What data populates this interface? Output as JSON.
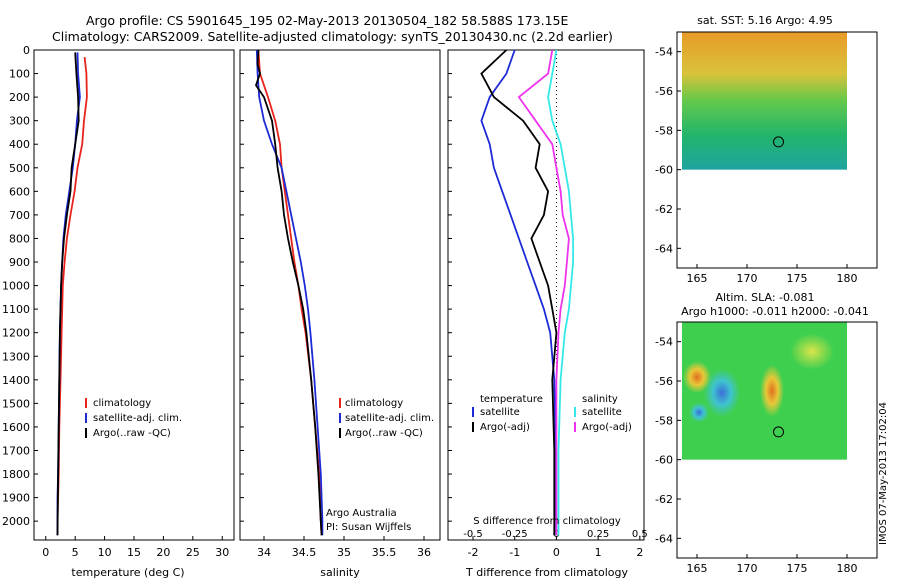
{
  "header": {
    "line1": "Argo profile: CS 5901645_195 02-May-2013 20130504_182 58.588S 173.15E",
    "line2": "Climatology: CARS2009. Satellite-adjusted climatology: synTS_20130430.nc (2.2d earlier)"
  },
  "colors": {
    "climatology": "#e8231b",
    "satellite": "#1d2bd6",
    "argo": "#000000",
    "satellite_salinity": "#33e8e8",
    "argo_salinity": "#ee33ee"
  },
  "depth_ticks": [
    0,
    100,
    200,
    300,
    400,
    500,
    600,
    700,
    800,
    900,
    1000,
    1100,
    1200,
    1300,
    1400,
    1500,
    1600,
    1700,
    1800,
    1900,
    2000
  ],
  "chart_data": [
    {
      "type": "line",
      "id": "temperature",
      "xlabel": "temperature (deg C)",
      "xlim": [
        -2,
        32
      ],
      "ylim": [
        2080,
        0
      ],
      "xticks": [
        0,
        5,
        10,
        15,
        20,
        25,
        30
      ],
      "legend": [
        "climatology",
        "satellite-adj. clim.",
        "Argo(..raw -QC)"
      ],
      "series": [
        {
          "name": "climatology",
          "color_key": "climatology",
          "x": [
            6.6,
            6.9,
            7.0,
            6.5,
            6.2,
            5.4,
            4.9,
            4.2,
            3.6,
            3.2,
            2.9,
            2.7,
            2.5,
            2.3,
            2.2,
            2.1,
            2.0,
            2.0
          ],
          "y": [
            30,
            100,
            200,
            300,
            400,
            500,
            600,
            700,
            800,
            900,
            1000,
            1200,
            1400,
            1600,
            1800,
            1900,
            2000,
            2060
          ]
        },
        {
          "name": "satellite-adj. clim.",
          "color_key": "satellite",
          "x": [
            5.4,
            5.5,
            5.8,
            5.3,
            5.0,
            4.6,
            4.0,
            3.4,
            3.0,
            2.8,
            2.6,
            2.4,
            2.3,
            2.2,
            2.1,
            2.0,
            2.0
          ],
          "y": [
            10,
            100,
            200,
            300,
            400,
            500,
            600,
            700,
            800,
            900,
            1000,
            1200,
            1400,
            1600,
            1800,
            1900,
            2060
          ]
        },
        {
          "name": "Argo(..raw -QC)",
          "color_key": "argo",
          "x": [
            5.0,
            5.2,
            5.5,
            5.6,
            5.0,
            4.4,
            4.2,
            3.6,
            3.1,
            2.8,
            2.6,
            2.4,
            2.3,
            2.2,
            2.1,
            2.0
          ],
          "y": [
            10,
            100,
            200,
            300,
            400,
            500,
            600,
            700,
            800,
            900,
            1000,
            1200,
            1400,
            1600,
            1800,
            2060
          ]
        }
      ]
    },
    {
      "type": "line",
      "id": "salinity",
      "xlabel": "salinity",
      "xlim": [
        33.7,
        36.2
      ],
      "ylim": [
        2080,
        0
      ],
      "xticks": [
        34,
        34.5,
        35,
        35.5,
        36
      ],
      "legend": [
        "climatology",
        "satellite-adj. clim.",
        "Argo(..raw -QC)"
      ],
      "annotation": [
        "Argo Australia",
        "PI: Susan Wijffels"
      ],
      "series": [
        {
          "name": "climatology",
          "color_key": "climatology",
          "x": [
            33.93,
            33.95,
            34.05,
            34.14,
            34.2,
            34.22,
            34.26,
            34.3,
            34.34,
            34.38,
            34.43,
            34.47,
            34.52,
            34.59,
            34.64,
            34.69,
            34.71,
            34.72
          ],
          "y": [
            0,
            100,
            200,
            300,
            400,
            500,
            600,
            700,
            800,
            900,
            1000,
            1100,
            1200,
            1400,
            1600,
            1800,
            2000,
            2060
          ]
        },
        {
          "name": "satellite-adj. clim.",
          "color_key": "satellite",
          "x": [
            33.91,
            33.92,
            33.94,
            34.0,
            34.1,
            34.22,
            34.28,
            34.34,
            34.4,
            34.46,
            34.51,
            34.55,
            34.58,
            34.63,
            34.67,
            34.71,
            34.73,
            34.73
          ],
          "y": [
            0,
            100,
            200,
            300,
            400,
            500,
            600,
            700,
            800,
            900,
            1000,
            1100,
            1200,
            1400,
            1600,
            1800,
            2000,
            2060
          ]
        },
        {
          "name": "Argo(..raw -QC)",
          "color_key": "argo",
          "x": [
            33.93,
            33.92,
            33.95,
            33.9,
            34.0,
            34.05,
            34.1,
            34.14,
            34.17,
            34.22,
            34.25,
            34.3,
            34.36,
            34.43,
            34.49,
            34.53,
            34.59,
            34.64,
            34.68,
            34.71,
            34.72
          ],
          "y": [
            0,
            60,
            100,
            150,
            200,
            250,
            300,
            400,
            500,
            600,
            700,
            800,
            900,
            1000,
            1100,
            1200,
            1400,
            1600,
            1800,
            2000,
            2060
          ]
        }
      ]
    },
    {
      "type": "line",
      "id": "difference",
      "xlabel": "T difference from climatology",
      "xlabel_top": "S difference from climatology",
      "xlim": [
        -2.6,
        2.1
      ],
      "ylim": [
        2080,
        0
      ],
      "xticks": [
        -2,
        -1,
        0,
        1,
        2
      ],
      "top_ticks": [
        {
          "label": "-0.5",
          "at": -2
        },
        {
          "label": "-0.25",
          "at": -1
        },
        {
          "label": "0",
          "at": 0
        },
        {
          "label": "0.25",
          "at": 1
        },
        {
          "label": "0.5",
          "at": 2
        }
      ],
      "legend_left_title": "temperature",
      "legend_right_title": "salinity",
      "legend_left": [
        "satellite",
        "Argo(-adj)"
      ],
      "legend_right": [
        "satellite",
        "Argo(-adj)"
      ],
      "series": [
        {
          "name": "satellite",
          "color_key": "satellite",
          "x": [
            -1.0,
            -1.2,
            -1.6,
            -1.8,
            -1.6,
            -1.5,
            -1.3,
            -1.1,
            -0.9,
            -0.7,
            -0.5,
            -0.3,
            -0.15,
            -0.05,
            -0.02,
            -0.05
          ],
          "y": [
            0,
            100,
            200,
            300,
            400,
            500,
            600,
            700,
            800,
            900,
            1000,
            1100,
            1200,
            1400,
            1700,
            2060
          ]
        },
        {
          "name": "Argo(-adj)",
          "color_key": "argo",
          "x": [
            -1.2,
            -1.8,
            -1.5,
            -0.8,
            -0.4,
            -0.5,
            -0.2,
            -0.3,
            -0.6,
            -0.4,
            -0.2,
            -0.1,
            0.0,
            -0.1,
            -0.05,
            -0.05
          ],
          "y": [
            0,
            100,
            200,
            300,
            400,
            500,
            600,
            700,
            800,
            900,
            1000,
            1100,
            1200,
            1400,
            1700,
            2060
          ]
        },
        {
          "name": "satellite",
          "color_key": "satellite_salinity",
          "x": [
            0.0,
            -0.1,
            -0.2,
            -0.1,
            0.1,
            0.2,
            0.3,
            0.35,
            0.4,
            0.4,
            0.35,
            0.3,
            0.2,
            0.1,
            0.05,
            0.05
          ],
          "y": [
            0,
            100,
            200,
            300,
            400,
            500,
            600,
            700,
            800,
            900,
            1000,
            1100,
            1200,
            1400,
            1700,
            2060
          ]
        },
        {
          "name": "Argo(-adj)",
          "color_key": "argo_salinity",
          "x": [
            -0.1,
            -0.2,
            -0.9,
            -0.5,
            -0.1,
            0.0,
            0.1,
            0.15,
            0.3,
            0.25,
            0.2,
            0.1,
            0.05,
            0.0,
            0.0,
            0.0
          ],
          "y": [
            0,
            100,
            200,
            300,
            400,
            500,
            600,
            700,
            800,
            900,
            1000,
            1100,
            1200,
            1400,
            1700,
            2060
          ]
        }
      ]
    },
    {
      "type": "heatmap",
      "id": "sst_map",
      "title": "sat. SST: 5.16 Argo: 4.95",
      "xlim": [
        163,
        183
      ],
      "ylim": [
        -65,
        -53
      ],
      "xticks": [
        165,
        170,
        175,
        180
      ],
      "yticks": [
        -54,
        -56,
        -58,
        -60,
        -62,
        -64
      ],
      "argo_position": {
        "lon": 173.15,
        "lat": -58.588
      }
    },
    {
      "type": "heatmap",
      "id": "sla_map",
      "title": "Altim. SLA: -0.081",
      "subtitle": "Argo h1000: -0.011 h2000: -0.041",
      "xlim": [
        163,
        183
      ],
      "ylim": [
        -65,
        -53
      ],
      "xticks": [
        165,
        170,
        175,
        180
      ],
      "yticks": [
        -54,
        -56,
        -58,
        -60,
        -62,
        -64
      ],
      "argo_position": {
        "lon": 173.15,
        "lat": -58.588
      }
    }
  ],
  "footer": {
    "timestamp": "IMOS 07-May-2013 17:02:04"
  }
}
